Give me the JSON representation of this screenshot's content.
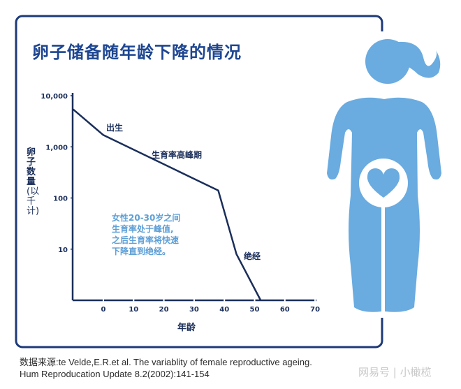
{
  "title": "卵子储备随年龄下降的情况",
  "colors": {
    "frame": "#1d3a78",
    "title": "#1d4591",
    "line": "#1a2e5a",
    "figure": "#6aabe0",
    "note": "#5d9fd6"
  },
  "chart_data": {
    "type": "line",
    "title": "卵子储备随年龄下降的情况",
    "xlabel": "年龄",
    "ylabel": "卵子数量",
    "ylabel_unit": "(以千计)",
    "y_scale": "log",
    "ylim": [
      1,
      10000
    ],
    "xlim": [
      -10,
      70
    ],
    "y_ticks": [
      {
        "value": 10000,
        "label": "10,000"
      },
      {
        "value": 1000,
        "label": "1,000"
      },
      {
        "value": 100,
        "label": "100"
      },
      {
        "value": 10,
        "label": "10"
      }
    ],
    "x_ticks": [
      0,
      10,
      20,
      30,
      40,
      50,
      60,
      70
    ],
    "grid": false,
    "series": [
      {
        "points": [
          [
            -10,
            5400
          ],
          [
            0,
            1700
          ],
          [
            38,
            140
          ],
          [
            44,
            8
          ],
          [
            52,
            1
          ]
        ]
      }
    ],
    "annotations": {
      "birth": "出生",
      "peak": "生育率高峰期",
      "menopause": "绝经",
      "note_lines": [
        "女性20-30岁之间",
        "生育率处于峰值,",
        "之后生育率将快速",
        "下降直到绝经。"
      ]
    }
  },
  "source": {
    "line1": "数据来源:te Velde,E.R.et al. The variablity of female reproductive ageing.",
    "line2": "Hum Reproducation Update 8.2(2002):141-154"
  },
  "watermark": "网易号 | 小橄榄",
  "figure_icon": "woman-silhouette-with-heart-icon"
}
